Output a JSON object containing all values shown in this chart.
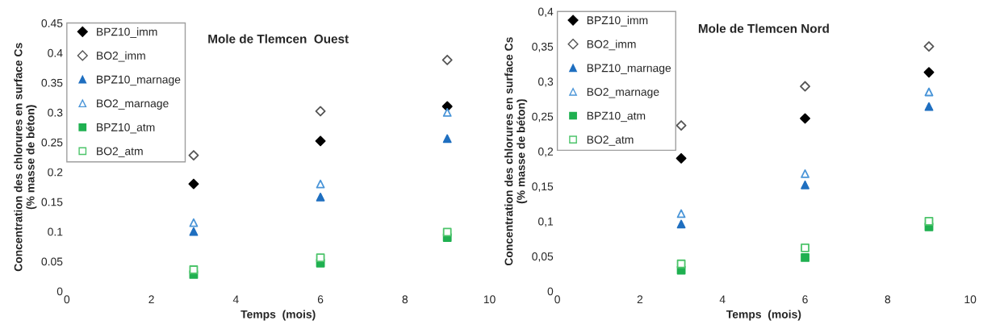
{
  "chart_data": [
    {
      "type": "scatter",
      "title": "Mole de Tlemcen  Ouest",
      "xlabel": "Temps  (mois)",
      "ylabel": "Concentration des chlorures en surface Cs\n(% masse de béton)",
      "x": [
        3,
        6,
        9
      ],
      "xlim": [
        0,
        10
      ],
      "xticks": [
        0,
        2,
        4,
        6,
        8,
        10
      ],
      "ylim": [
        0,
        0.45
      ],
      "yticks": [
        0,
        0.05,
        0.1,
        0.15,
        0.2,
        0.25,
        0.3,
        0.35,
        0.4,
        0.45
      ],
      "grid": false,
      "legend": "top left",
      "series": [
        {
          "name": "BPZ10_imm",
          "color": "#000000",
          "marker": "diamond",
          "values": [
            0.18,
            0.252,
            0.31
          ]
        },
        {
          "name": "BO2_imm",
          "color": "#555555",
          "marker": "diamond",
          "values": [
            0.228,
            0.302,
            0.388
          ]
        },
        {
          "name": "BPZ10_marnage",
          "color": "#1f6fc0",
          "marker": "triangle",
          "values": [
            0.1,
            0.158,
            0.256
          ]
        },
        {
          "name": "BO2_marnage",
          "color": "#4a95d8",
          "marker": "triangle",
          "values": [
            0.115,
            0.18,
            0.3
          ]
        },
        {
          "name": "BPZ10_atm",
          "color": "#1fb050",
          "marker": "square",
          "values": [
            0.028,
            0.047,
            0.09
          ]
        },
        {
          "name": "BO2_atm",
          "color": "#4cc46a",
          "marker": "square",
          "values": [
            0.036,
            0.056,
            0.099
          ]
        }
      ]
    },
    {
      "type": "scatter",
      "title": "Mole de Tlemcen Nord",
      "xlabel": "Temps  (mois)",
      "ylabel": "Concentration des chlorures en surface Cs\n(% masse de béton)",
      "x": [
        3,
        6,
        9
      ],
      "xlim": [
        0,
        10
      ],
      "xticks": [
        0,
        2,
        4,
        6,
        8,
        10
      ],
      "ylim": [
        0,
        0.4
      ],
      "yticks": [
        0,
        {
          "value": 0.05,
          "label": "0,05"
        },
        {
          "value": 0.1,
          "label": "0,1"
        },
        {
          "value": 0.15,
          "label": "0,15"
        },
        {
          "value": 0.2,
          "label": "0,2"
        },
        {
          "value": 0.25,
          "label": "0,25"
        },
        {
          "value": 0.3,
          "label": "0,3"
        },
        {
          "value": 0.35,
          "label": "0,35"
        },
        {
          "value": 0.4,
          "label": "0,4"
        }
      ],
      "grid": false,
      "legend": "top left",
      "series": [
        {
          "name": "BPZ10_imm",
          "color": "#000000",
          "marker": "diamond",
          "values": [
            0.19,
            0.247,
            0.313
          ]
        },
        {
          "name": "BO2_imm",
          "color": "#555555",
          "marker": "diamond",
          "values": [
            0.237,
            0.293,
            0.35
          ]
        },
        {
          "name": "BPZ10_marnage",
          "color": "#1f6fc0",
          "marker": "triangle",
          "values": [
            0.096,
            0.152,
            0.264
          ]
        },
        {
          "name": "BO2_marnage",
          "color": "#4a95d8",
          "marker": "triangle",
          "values": [
            0.111,
            0.168,
            0.285
          ]
        },
        {
          "name": "BPZ10_atm",
          "color": "#1fb050",
          "marker": "square",
          "values": [
            0.03,
            0.048,
            0.092
          ]
        },
        {
          "name": "BO2_atm",
          "color": "#4cc46a",
          "marker": "square",
          "values": [
            0.039,
            0.062,
            0.1
          ]
        }
      ]
    }
  ]
}
